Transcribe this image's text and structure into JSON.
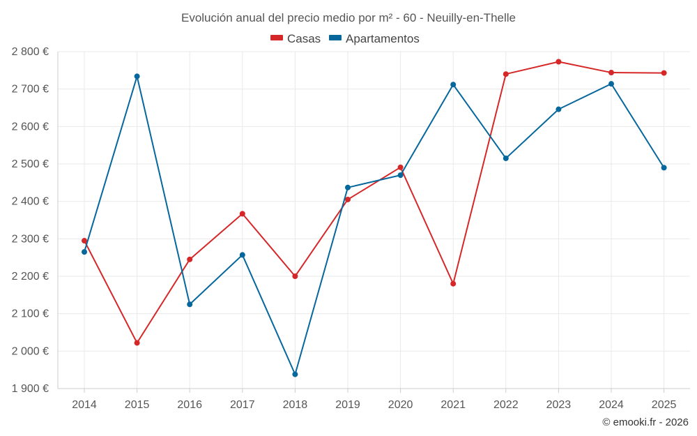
{
  "chart_data": {
    "type": "line",
    "title": "Evolución anual del precio medio por m² - 60 - Neuilly-en-Thelle",
    "categories": [
      "2014",
      "2015",
      "2016",
      "2017",
      "2018",
      "2019",
      "2020",
      "2021",
      "2022",
      "2023",
      "2024",
      "2025"
    ],
    "series": [
      {
        "name": "Casas",
        "color": "#d62728",
        "values": [
          2295,
          2022,
          2245,
          2367,
          2200,
          2405,
          2491,
          2180,
          2740,
          2773,
          2744,
          2743
        ]
      },
      {
        "name": "Apartamentos",
        "color": "#05679c",
        "values": [
          2265,
          2734,
          2125,
          2257,
          1938,
          2437,
          2470,
          2712,
          2515,
          2646,
          2714,
          2490
        ]
      }
    ],
    "yticks": [
      1900,
      2000,
      2100,
      2200,
      2300,
      2400,
      2500,
      2600,
      2700,
      2800
    ],
    "ytick_labels": [
      "1 900 €",
      "2 000 €",
      "2 100 €",
      "2 200 €",
      "2 300 €",
      "2 400 €",
      "2 500 €",
      "2 600 €",
      "2 700 €",
      "2 800 €"
    ],
    "ylim": [
      1900,
      2800
    ],
    "xlabel": "",
    "ylabel": "",
    "legend_position": "top-center",
    "grid": true
  },
  "credit": "© emooki.fr - 2026"
}
